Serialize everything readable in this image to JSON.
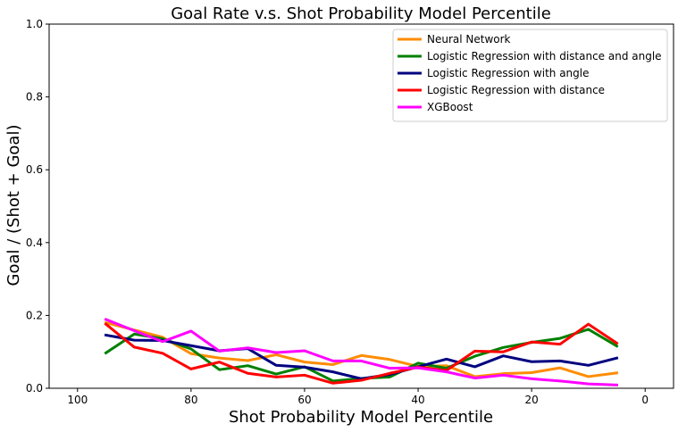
{
  "chart_data": {
    "type": "line",
    "title": "Goal Rate v.s. Shot Probability Model Percentile",
    "xlabel": "Shot Probability Model Percentile",
    "ylabel": "Goal / (Shot + Goal)",
    "xlim": [
      105,
      -5
    ],
    "ylim": [
      0,
      1.0
    ],
    "xticks": [
      100,
      80,
      60,
      40,
      20,
      0
    ],
    "yticks": [
      0.0,
      0.2,
      0.4,
      0.6,
      0.8,
      1.0
    ],
    "ytick_labels": [
      "0.0",
      "0.2",
      "0.4",
      "0.6",
      "0.8",
      "1.0"
    ],
    "legend_position": "top-right",
    "x": [
      95,
      90,
      85,
      80,
      75,
      70,
      65,
      60,
      55,
      50,
      45,
      40,
      35,
      30,
      25,
      20,
      15,
      10,
      5
    ],
    "series": [
      {
        "name": "Neural Network",
        "color": "#ff8c00",
        "values": [
          0.18,
          0.16,
          0.14,
          0.095,
          0.083,
          0.076,
          0.092,
          0.072,
          0.065,
          0.09,
          0.079,
          0.06,
          0.062,
          0.032,
          0.04,
          0.043,
          0.056,
          0.032,
          0.042
        ]
      },
      {
        "name": "Logistic Regression with distance and angle",
        "color": "#008000",
        "values": [
          0.097,
          0.149,
          0.136,
          0.108,
          0.051,
          0.062,
          0.039,
          0.059,
          0.02,
          0.027,
          0.031,
          0.069,
          0.055,
          0.088,
          0.112,
          0.126,
          0.137,
          0.162,
          0.116
        ]
      },
      {
        "name": "Logistic Regression with angle",
        "color": "#000080",
        "values": [
          0.146,
          0.132,
          0.131,
          0.117,
          0.103,
          0.109,
          0.063,
          0.058,
          0.045,
          0.026,
          0.038,
          0.059,
          0.08,
          0.059,
          0.089,
          0.073,
          0.075,
          0.063,
          0.083
        ]
      },
      {
        "name": "Logistic Regression with distance",
        "color": "#ff0000",
        "values": [
          0.176,
          0.113,
          0.096,
          0.053,
          0.072,
          0.041,
          0.031,
          0.036,
          0.014,
          0.022,
          0.041,
          0.058,
          0.049,
          0.102,
          0.1,
          0.127,
          0.121,
          0.176,
          0.124
        ]
      },
      {
        "name": "XGBoost",
        "color": "#ff00ff",
        "values": [
          0.189,
          0.158,
          0.128,
          0.157,
          0.102,
          0.111,
          0.098,
          0.103,
          0.075,
          0.075,
          0.055,
          0.056,
          0.045,
          0.028,
          0.036,
          0.026,
          0.02,
          0.012,
          0.009
        ]
      }
    ]
  }
}
